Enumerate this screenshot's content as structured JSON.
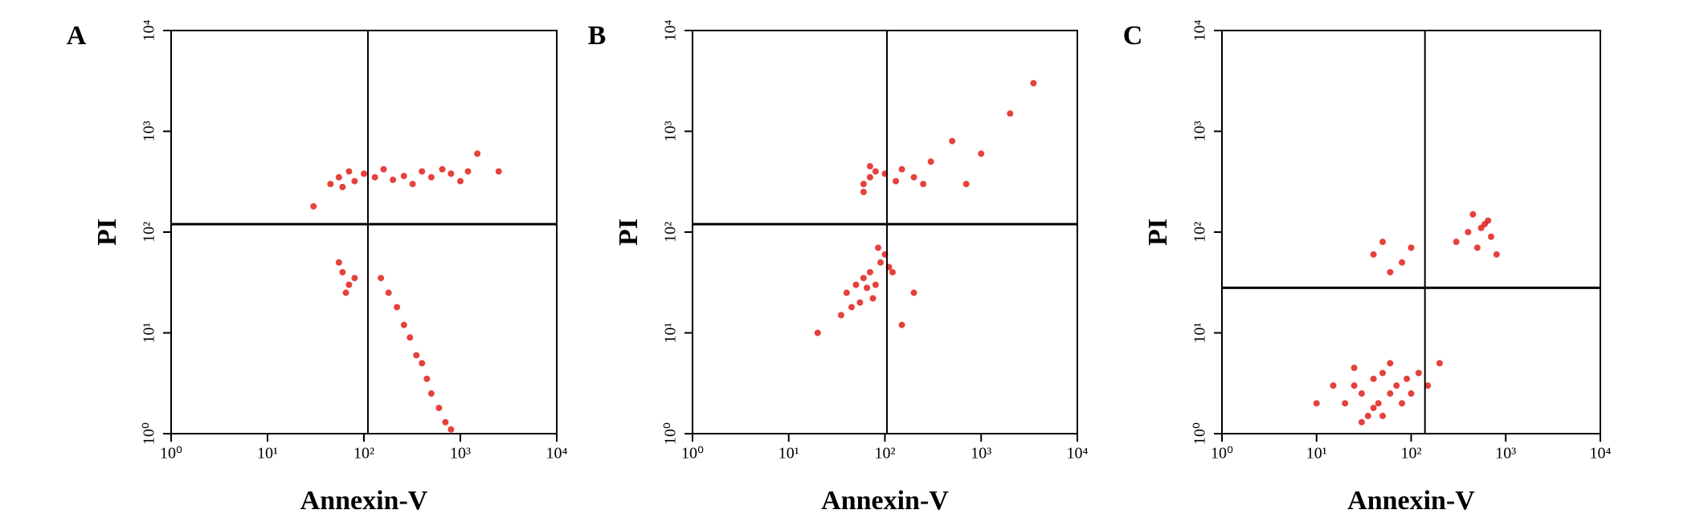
{
  "chart_data": [
    {
      "type": "scatter",
      "panel": "A",
      "xlabel": "Annexin-V",
      "ylabel": "PI",
      "color": "#e0201b",
      "log_x": true,
      "log_y": true,
      "xlim": [
        1,
        10000
      ],
      "ylim": [
        1,
        10000
      ],
      "xticks": [
        {
          "value": 1,
          "label": "10⁰"
        },
        {
          "value": 10,
          "label": "10¹"
        },
        {
          "value": 100,
          "label": "10²"
        },
        {
          "value": 1000,
          "label": "10³"
        },
        {
          "value": 10000,
          "label": "10⁴"
        }
      ],
      "yticks": [
        {
          "value": 1,
          "label": "10⁰"
        },
        {
          "value": 10,
          "label": "10¹"
        },
        {
          "value": 100,
          "label": "10²"
        },
        {
          "value": 1000,
          "label": "10³"
        },
        {
          "value": 10000,
          "label": "10⁴"
        }
      ],
      "quadrant": {
        "x": 110,
        "y": 120
      },
      "x": [
        45,
        55,
        60,
        70,
        80,
        100,
        130,
        160,
        200,
        260,
        320,
        400,
        500,
        650,
        800,
        1000,
        1200,
        60,
        70,
        55,
        80,
        65,
        150,
        180,
        220,
        260,
        300,
        350,
        400,
        450,
        500,
        600,
        700,
        800,
        2500,
        1500,
        30
      ],
      "values": [
        300,
        350,
        280,
        400,
        320,
        380,
        350,
        420,
        330,
        360,
        300,
        400,
        350,
        420,
        380,
        320,
        400,
        40,
        30,
        50,
        35,
        25,
        35,
        25,
        18,
        12,
        9,
        6,
        5,
        3.5,
        2.5,
        1.8,
        1.3,
        1.1,
        400,
        600,
        180
      ]
    },
    {
      "type": "scatter",
      "panel": "B",
      "xlabel": "Annexin-V",
      "ylabel": "PI",
      "color": "#e0201b",
      "log_x": true,
      "log_y": true,
      "xlim": [
        1,
        10000
      ],
      "ylim": [
        1,
        10000
      ],
      "xticks": [
        {
          "value": 1,
          "label": "10⁰"
        },
        {
          "value": 10,
          "label": "10¹"
        },
        {
          "value": 100,
          "label": "10²"
        },
        {
          "value": 1000,
          "label": "10³"
        },
        {
          "value": 10000,
          "label": "10⁴"
        }
      ],
      "yticks": [
        {
          "value": 1,
          "label": "10⁰"
        },
        {
          "value": 10,
          "label": "10¹"
        },
        {
          "value": 100,
          "label": "10²"
        },
        {
          "value": 1000,
          "label": "10³"
        },
        {
          "value": 10000,
          "label": "10⁴"
        }
      ],
      "quadrant": {
        "x": 105,
        "y": 120
      },
      "x": [
        40,
        50,
        60,
        70,
        80,
        55,
        65,
        45,
        90,
        100,
        110,
        120,
        35,
        75,
        85,
        60,
        70,
        80,
        100,
        130,
        150,
        200,
        250,
        60,
        70,
        300,
        500,
        1000,
        2000,
        3500,
        20,
        200,
        150,
        700
      ],
      "values": [
        25,
        30,
        35,
        40,
        30,
        20,
        28,
        18,
        50,
        60,
        45,
        40,
        15,
        22,
        70,
        300,
        350,
        400,
        380,
        320,
        420,
        350,
        300,
        250,
        450,
        500,
        800,
        600,
        1500,
        3000,
        10,
        25,
        12,
        300
      ]
    },
    {
      "type": "scatter",
      "panel": "C",
      "xlabel": "Annexin-V",
      "ylabel": "PI",
      "color": "#e0201b",
      "log_x": true,
      "log_y": true,
      "xlim": [
        1,
        10000
      ],
      "ylim": [
        1,
        10000
      ],
      "xticks": [
        {
          "value": 1,
          "label": "10⁰"
        },
        {
          "value": 10,
          "label": "10¹"
        },
        {
          "value": 100,
          "label": "10²"
        },
        {
          "value": 1000,
          "label": "10³"
        },
        {
          "value": 10000,
          "label": "10⁴"
        }
      ],
      "yticks": [
        {
          "value": 1,
          "label": "10⁰"
        },
        {
          "value": 10,
          "label": "10¹"
        },
        {
          "value": 100,
          "label": "10²"
        },
        {
          "value": 1000,
          "label": "10³"
        },
        {
          "value": 10000,
          "label": "10⁴"
        }
      ],
      "quadrant": {
        "x": 140,
        "y": 28
      },
      "x": [
        20,
        25,
        30,
        35,
        40,
        45,
        50,
        60,
        70,
        80,
        90,
        100,
        120,
        150,
        30,
        40,
        50,
        60,
        15,
        25,
        200,
        10,
        300,
        400,
        500,
        600,
        700,
        800,
        450,
        550,
        650,
        40,
        50,
        80,
        100,
        60
      ],
      "values": [
        2,
        3,
        2.5,
        1.5,
        3.5,
        2,
        4,
        2.5,
        3,
        2,
        3.5,
        2.5,
        4,
        3,
        1.3,
        1.8,
        1.5,
        5,
        3,
        4.5,
        5,
        2,
        80,
        100,
        70,
        120,
        90,
        60,
        150,
        110,
        130,
        60,
        80,
        50,
        70,
        40
      ]
    }
  ]
}
